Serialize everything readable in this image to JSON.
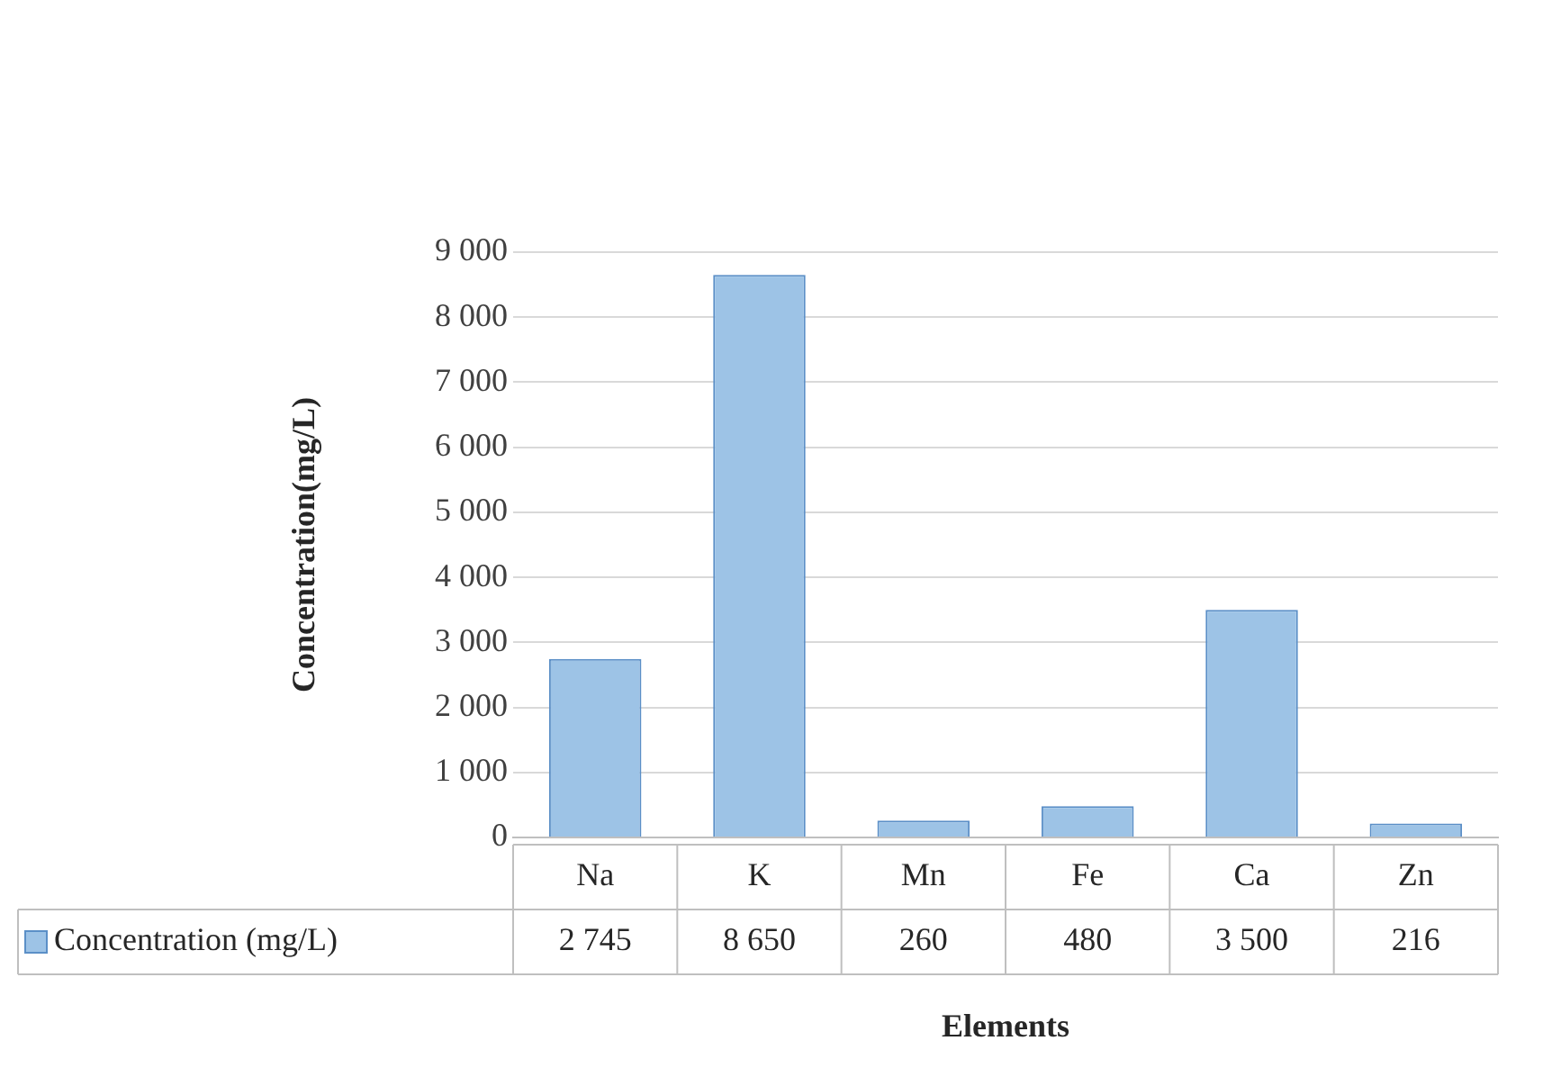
{
  "chart_data": {
    "type": "bar",
    "xlabel": "Elements",
    "ylabel": "Concentration(mg/L)",
    "categories": [
      "Na",
      "K",
      "Mn",
      "Fe",
      "Ca",
      "Zn"
    ],
    "series": [
      {
        "name": "Concentration (mg/L)",
        "color": "#9dc3e6",
        "values": [
          2745,
          8650,
          260,
          480,
          3500,
          216
        ],
        "value_labels": [
          "2 745",
          "8 650",
          "260",
          "480",
          "3 500",
          "216"
        ]
      }
    ],
    "ylim": [
      0,
      9000
    ],
    "yticks": [
      {
        "value": 0,
        "label": "0"
      },
      {
        "value": 1000,
        "label": "1 000"
      },
      {
        "value": 2000,
        "label": "2 000"
      },
      {
        "value": 3000,
        "label": "3 000"
      },
      {
        "value": 4000,
        "label": "4 000"
      },
      {
        "value": 5000,
        "label": "5 000"
      },
      {
        "value": 6000,
        "label": "6 000"
      },
      {
        "value": 7000,
        "label": "7 000"
      },
      {
        "value": 8000,
        "label": "8 000"
      },
      {
        "value": 9000,
        "label": "9 000"
      }
    ],
    "grid": "y",
    "legend": "bottom"
  }
}
